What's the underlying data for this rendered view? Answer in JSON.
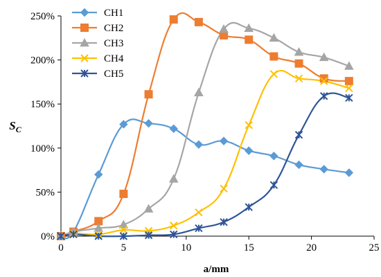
{
  "chart_data": {
    "type": "line",
    "xlabel": "a/mm",
    "ylabel": "S",
    "ylabel_sub": "C",
    "xlim": [
      0,
      25
    ],
    "ylim": [
      0,
      2.5
    ],
    "x_ticks": [
      0,
      5,
      10,
      15,
      20,
      25
    ],
    "y_ticks": [
      0,
      0.5,
      1.0,
      1.5,
      2.0,
      2.5
    ],
    "x_tick_labels": [
      "0",
      "5",
      "10",
      "15",
      "20",
      "25"
    ],
    "y_tick_labels": [
      "0%",
      "50%",
      "100%",
      "150%",
      "200%",
      "250%"
    ],
    "grid": false,
    "legend_position": "top-left",
    "x": [
      0,
      1,
      3,
      5,
      7,
      9,
      11,
      13,
      15,
      17,
      19,
      21,
      23
    ],
    "series": [
      {
        "name": "CH1",
        "color": "#5B9BD5",
        "marker": "diamond",
        "values": [
          0.0,
          0.05,
          0.7,
          1.27,
          1.28,
          1.22,
          1.04,
          1.08,
          0.97,
          0.91,
          0.81,
          0.76,
          0.72
        ]
      },
      {
        "name": "CH2",
        "color": "#ED7D31",
        "marker": "square",
        "values": [
          0.0,
          0.05,
          0.17,
          0.48,
          1.61,
          2.46,
          2.43,
          2.28,
          2.23,
          2.04,
          1.96,
          1.79,
          1.76
        ]
      },
      {
        "name": "CH3",
        "color": "#A5A5A5",
        "marker": "triangle",
        "values": [
          0.0,
          0.05,
          0.09,
          0.13,
          0.31,
          0.65,
          1.63,
          2.35,
          2.36,
          2.25,
          2.09,
          2.03,
          1.93
        ]
      },
      {
        "name": "CH4",
        "color": "#FFC000",
        "marker": "x",
        "values": [
          0.0,
          0.03,
          0.02,
          0.07,
          0.06,
          0.12,
          0.27,
          0.54,
          1.26,
          1.84,
          1.79,
          1.76,
          1.68
        ]
      },
      {
        "name": "CH5",
        "color": "#2F5597",
        "marker": "star",
        "values": [
          0.0,
          0.02,
          0.0,
          0.0,
          0.01,
          0.02,
          0.09,
          0.16,
          0.33,
          0.58,
          1.15,
          1.59,
          1.57
        ]
      }
    ]
  }
}
